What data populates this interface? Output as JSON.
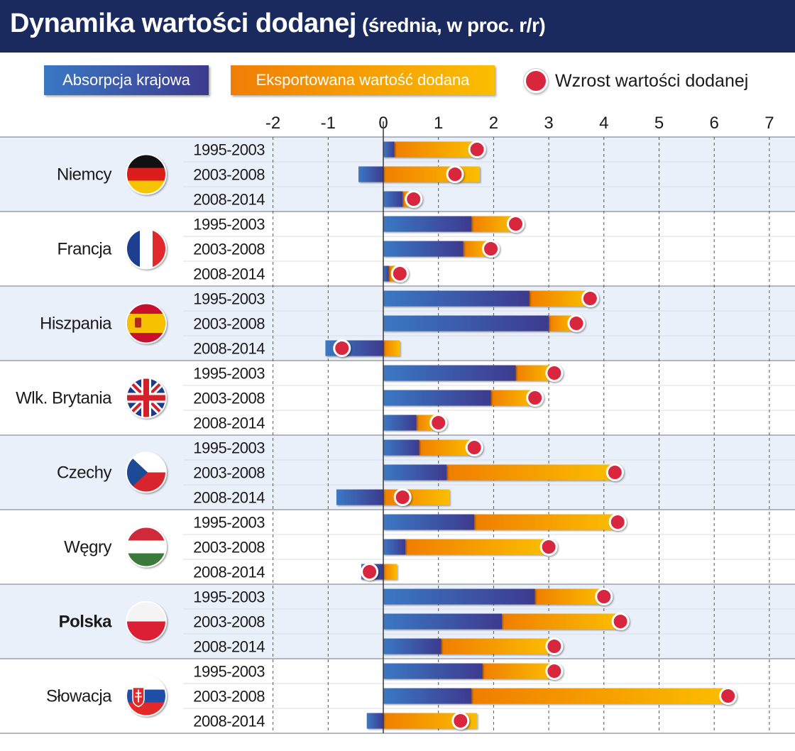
{
  "title": {
    "main": "Dynamika wartości dodanej",
    "sub": "(średnia, w proc. r/r)"
  },
  "legend": {
    "absorption": "Absorpcja krajowa",
    "export": "Eksportowana wartość dodana",
    "growth": "Wzrost wartości dodanej"
  },
  "colors": {
    "header": "#1b2a5e",
    "absorption_start": "#3a78c4",
    "absorption_end": "#3d3a8e",
    "export_start": "#f07e06",
    "export_end": "#fbbe00",
    "growth_dot": "#d7263d",
    "band_shaded": "#eaf0fa"
  },
  "chart_data": {
    "type": "bar",
    "orientation": "horizontal",
    "stacked": true,
    "xlim": [
      -2,
      7
    ],
    "xticks": [
      "-2",
      "-1",
      "0",
      "1",
      "2",
      "3",
      "4",
      "5",
      "6",
      "7"
    ],
    "grid": true,
    "legend_position": "top",
    "series": [
      {
        "name": "Absorpcja krajowa"
      },
      {
        "name": "Eksportowana wartość dodana"
      },
      {
        "name": "Wzrost wartości dodanej"
      }
    ],
    "groups": [
      {
        "country": "Niemcy",
        "flag": "germany-flag",
        "bold": false,
        "rows": [
          {
            "period": "1995-2003",
            "absorption": 0.2,
            "export": 1.5,
            "growth": 1.7
          },
          {
            "period": "2003-2008",
            "absorption": -0.45,
            "export": 1.75,
            "growth": 1.3
          },
          {
            "period": "2008-2014",
            "absorption": 0.35,
            "export": 0.2,
            "growth": 0.55
          }
        ]
      },
      {
        "country": "Francja",
        "flag": "france-flag",
        "bold": false,
        "rows": [
          {
            "period": "1995-2003",
            "absorption": 1.6,
            "export": 0.8,
            "growth": 2.4
          },
          {
            "period": "2003-2008",
            "absorption": 1.45,
            "export": 0.5,
            "growth": 1.95
          },
          {
            "period": "2008-2014",
            "absorption": 0.1,
            "export": 0.2,
            "growth": 0.3
          }
        ]
      },
      {
        "country": "Hiszpania",
        "flag": "spain-flag",
        "bold": false,
        "rows": [
          {
            "period": "1995-2003",
            "absorption": 2.65,
            "export": 1.1,
            "growth": 3.75
          },
          {
            "period": "2003-2008",
            "absorption": 3.0,
            "export": 0.5,
            "growth": 3.5
          },
          {
            "period": "2008-2014",
            "absorption": -1.05,
            "export": 0.3,
            "growth": -0.75
          }
        ]
      },
      {
        "country": "Wlk. Brytania",
        "flag": "uk-flag",
        "bold": false,
        "rows": [
          {
            "period": "1995-2003",
            "absorption": 2.4,
            "export": 0.7,
            "growth": 3.1
          },
          {
            "period": "2003-2008",
            "absorption": 1.95,
            "export": 0.8,
            "growth": 2.75
          },
          {
            "period": "2008-2014",
            "absorption": 0.6,
            "export": 0.4,
            "growth": 1.0
          }
        ]
      },
      {
        "country": "Czechy",
        "flag": "czechia-flag",
        "bold": false,
        "rows": [
          {
            "period": "1995-2003",
            "absorption": 0.65,
            "export": 1.0,
            "growth": 1.65
          },
          {
            "period": "2003-2008",
            "absorption": 1.15,
            "export": 3.05,
            "growth": 4.2
          },
          {
            "period": "2008-2014",
            "absorption": -0.85,
            "export": 1.2,
            "growth": 0.35
          }
        ]
      },
      {
        "country": "Węgry",
        "flag": "hungary-flag",
        "bold": false,
        "rows": [
          {
            "period": "1995-2003",
            "absorption": 1.65,
            "export": 2.6,
            "growth": 4.25
          },
          {
            "period": "2003-2008",
            "absorption": 0.4,
            "export": 2.6,
            "growth": 3.0
          },
          {
            "period": "2008-2014",
            "absorption": -0.4,
            "export": 0.25,
            "growth": -0.25
          }
        ]
      },
      {
        "country": "Polska",
        "flag": "poland-flag",
        "bold": true,
        "rows": [
          {
            "period": "1995-2003",
            "absorption": 2.75,
            "export": 1.25,
            "growth": 4.0
          },
          {
            "period": "2003-2008",
            "absorption": 2.15,
            "export": 2.15,
            "growth": 4.3
          },
          {
            "period": "2008-2014",
            "absorption": 1.05,
            "export": 2.05,
            "growth": 3.1
          }
        ]
      },
      {
        "country": "Słowacja",
        "flag": "slovakia-flag",
        "bold": false,
        "rows": [
          {
            "period": "1995-2003",
            "absorption": 1.8,
            "export": 1.3,
            "growth": 3.1
          },
          {
            "period": "2003-2008",
            "absorption": 1.6,
            "export": 4.65,
            "growth": 6.25
          },
          {
            "period": "2008-2014",
            "absorption": -0.3,
            "export": 1.7,
            "growth": 1.4
          }
        ]
      }
    ]
  }
}
